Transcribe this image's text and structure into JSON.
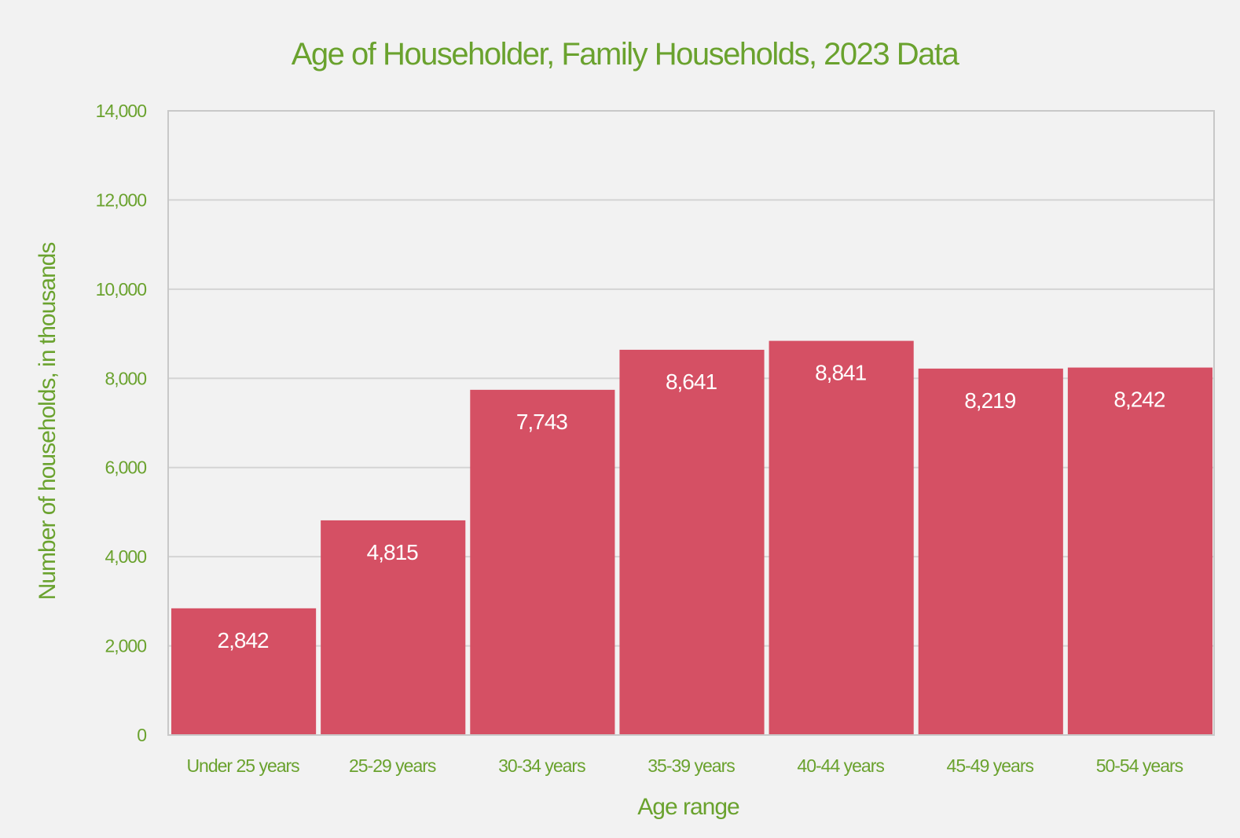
{
  "colors": {
    "background": "#f2f2f2",
    "accent_text": "#6aa22e",
    "bar": "#d55064",
    "bar_label": "#ffffff",
    "gridline": "#d4d4d4",
    "axis": "#c8c8c8"
  },
  "chart_data": {
    "type": "bar",
    "title": "Age of Householder, Family Households, 2023 Data",
    "xlabel": "Age range",
    "ylabel": "Number of households, in thousands",
    "categories": [
      "Under 25 years",
      "25-29 years",
      "30-34 years",
      "35-39 years",
      "40-44 years",
      "45-49 years",
      "50-54 years"
    ],
    "values": [
      2842,
      4815,
      7743,
      8641,
      8841,
      8219,
      8242
    ],
    "value_labels": [
      "2,842",
      "4,815",
      "7,743",
      "8,641",
      "8,841",
      "8,219",
      "8,242"
    ],
    "ylim": [
      0,
      14000
    ],
    "yticks": [
      0,
      2000,
      4000,
      6000,
      8000,
      10000,
      12000,
      14000
    ],
    "ytick_labels": [
      "0",
      "2,000",
      "4,000",
      "6,000",
      "8,000",
      "10,000",
      "12,000",
      "14,000"
    ],
    "grid": true,
    "legend": "none"
  }
}
